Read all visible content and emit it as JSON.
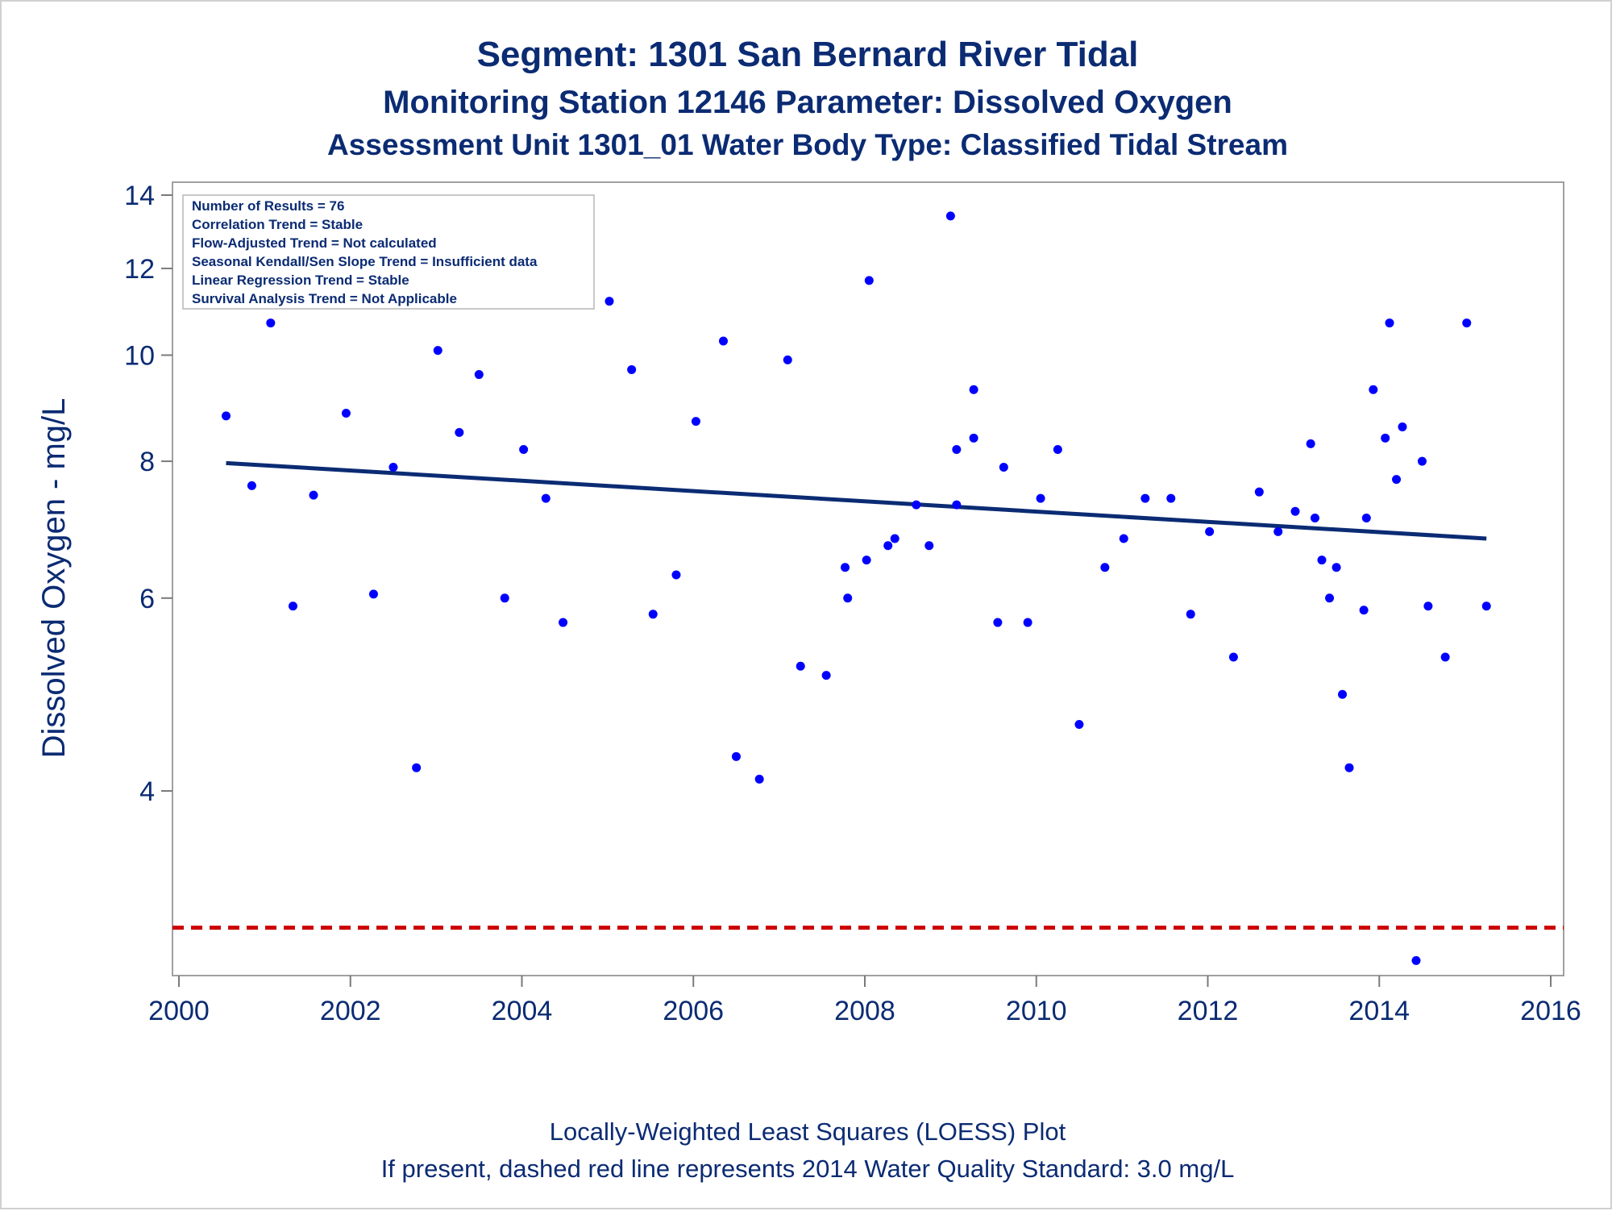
{
  "titles": {
    "line1": "Segment: 1301  San Bernard River Tidal",
    "line2": "Monitoring Station 12146 Parameter: Dissolved Oxygen",
    "line3": "Assessment Unit 1301_01   Water Body Type: Classified Tidal Stream"
  },
  "stats_box": [
    "Number of Results = 76",
    "Correlation Trend = Stable",
    "Flow-Adjusted Trend = Not calculated",
    "Seasonal Kendall/Sen Slope Trend = Insufficient data",
    "Linear Regression Trend = Stable",
    "Survival Analysis Trend = Not Applicable"
  ],
  "footnotes": {
    "line1": "Locally-Weighted Least Squares (LOESS) Plot",
    "line2": "If present, dashed red line represents 2014 Water Quality Standard: 3.0 mg/L"
  },
  "colors": {
    "points": "#0000ff",
    "trend": "#0b2b73",
    "standard": "#cc0000",
    "text": "#0b2b73"
  },
  "chart_data": {
    "type": "scatter",
    "xlabel": "",
    "ylabel": "Dissolved Oxygen - mg/L",
    "y_scale": "log",
    "xlim": [
      2000,
      2016
    ],
    "ylim": [
      2.75,
      14
    ],
    "xticks": [
      2000,
      2002,
      2004,
      2006,
      2008,
      2010,
      2012,
      2014,
      2016
    ],
    "yticks": [
      4,
      6,
      8,
      10,
      12,
      14
    ],
    "grid": false,
    "points": [
      [
        2000.55,
        8.8
      ],
      [
        2000.85,
        7.6
      ],
      [
        2001.07,
        10.7
      ],
      [
        2001.33,
        5.9
      ],
      [
        2001.57,
        7.45
      ],
      [
        2001.95,
        8.85
      ],
      [
        2002.27,
        6.05
      ],
      [
        2002.5,
        7.9
      ],
      [
        2002.77,
        4.2
      ],
      [
        2003.02,
        10.1
      ],
      [
        2003.27,
        8.5
      ],
      [
        2003.5,
        9.6
      ],
      [
        2003.8,
        6.0
      ],
      [
        2004.02,
        8.2
      ],
      [
        2004.28,
        7.4
      ],
      [
        2004.48,
        5.7
      ],
      [
        2005.02,
        11.2
      ],
      [
        2005.28,
        9.7
      ],
      [
        2005.53,
        5.8
      ],
      [
        2005.8,
        6.3
      ],
      [
        2006.03,
        8.7
      ],
      [
        2006.35,
        10.3
      ],
      [
        2006.5,
        4.3
      ],
      [
        2006.77,
        4.1
      ],
      [
        2007.1,
        9.9
      ],
      [
        2007.25,
        5.2
      ],
      [
        2007.55,
        5.1
      ],
      [
        2007.77,
        6.4
      ],
      [
        2007.8,
        6.0
      ],
      [
        2008.02,
        6.5
      ],
      [
        2008.05,
        11.7
      ],
      [
        2008.27,
        6.7
      ],
      [
        2008.35,
        6.8
      ],
      [
        2008.6,
        7.3
      ],
      [
        2008.75,
        6.7
      ],
      [
        2009.0,
        13.4
      ],
      [
        2009.07,
        8.2
      ],
      [
        2009.07,
        7.3
      ],
      [
        2009.27,
        8.4
      ],
      [
        2009.27,
        9.3
      ],
      [
        2009.55,
        5.7
      ],
      [
        2009.62,
        7.9
      ],
      [
        2009.9,
        5.7
      ],
      [
        2010.05,
        7.4
      ],
      [
        2010.25,
        8.2
      ],
      [
        2010.5,
        4.6
      ],
      [
        2010.8,
        6.4
      ],
      [
        2011.02,
        6.8
      ],
      [
        2011.27,
        7.4
      ],
      [
        2011.57,
        7.4
      ],
      [
        2011.8,
        5.8
      ],
      [
        2012.02,
        6.9
      ],
      [
        2012.3,
        5.3
      ],
      [
        2012.6,
        7.5
      ],
      [
        2012.82,
        6.9
      ],
      [
        2013.02,
        7.2
      ],
      [
        2013.2,
        8.3
      ],
      [
        2013.25,
        7.1
      ],
      [
        2013.33,
        6.5
      ],
      [
        2013.42,
        6.0
      ],
      [
        2013.5,
        6.4
      ],
      [
        2013.57,
        4.9
      ],
      [
        2013.65,
        4.2
      ],
      [
        2013.82,
        5.85
      ],
      [
        2013.85,
        7.1
      ],
      [
        2013.93,
        9.3
      ],
      [
        2014.07,
        8.4
      ],
      [
        2014.12,
        10.7
      ],
      [
        2014.2,
        7.7
      ],
      [
        2014.27,
        8.6
      ],
      [
        2014.43,
        2.8
      ],
      [
        2014.5,
        8.0
      ],
      [
        2014.57,
        5.9
      ],
      [
        2014.77,
        5.3
      ],
      [
        2015.02,
        10.7
      ],
      [
        2015.25,
        5.9
      ]
    ],
    "trend_line": {
      "x": [
        2000.55,
        2015.25
      ],
      "y": [
        7.97,
        6.8
      ]
    },
    "standard_line": 3.0
  }
}
